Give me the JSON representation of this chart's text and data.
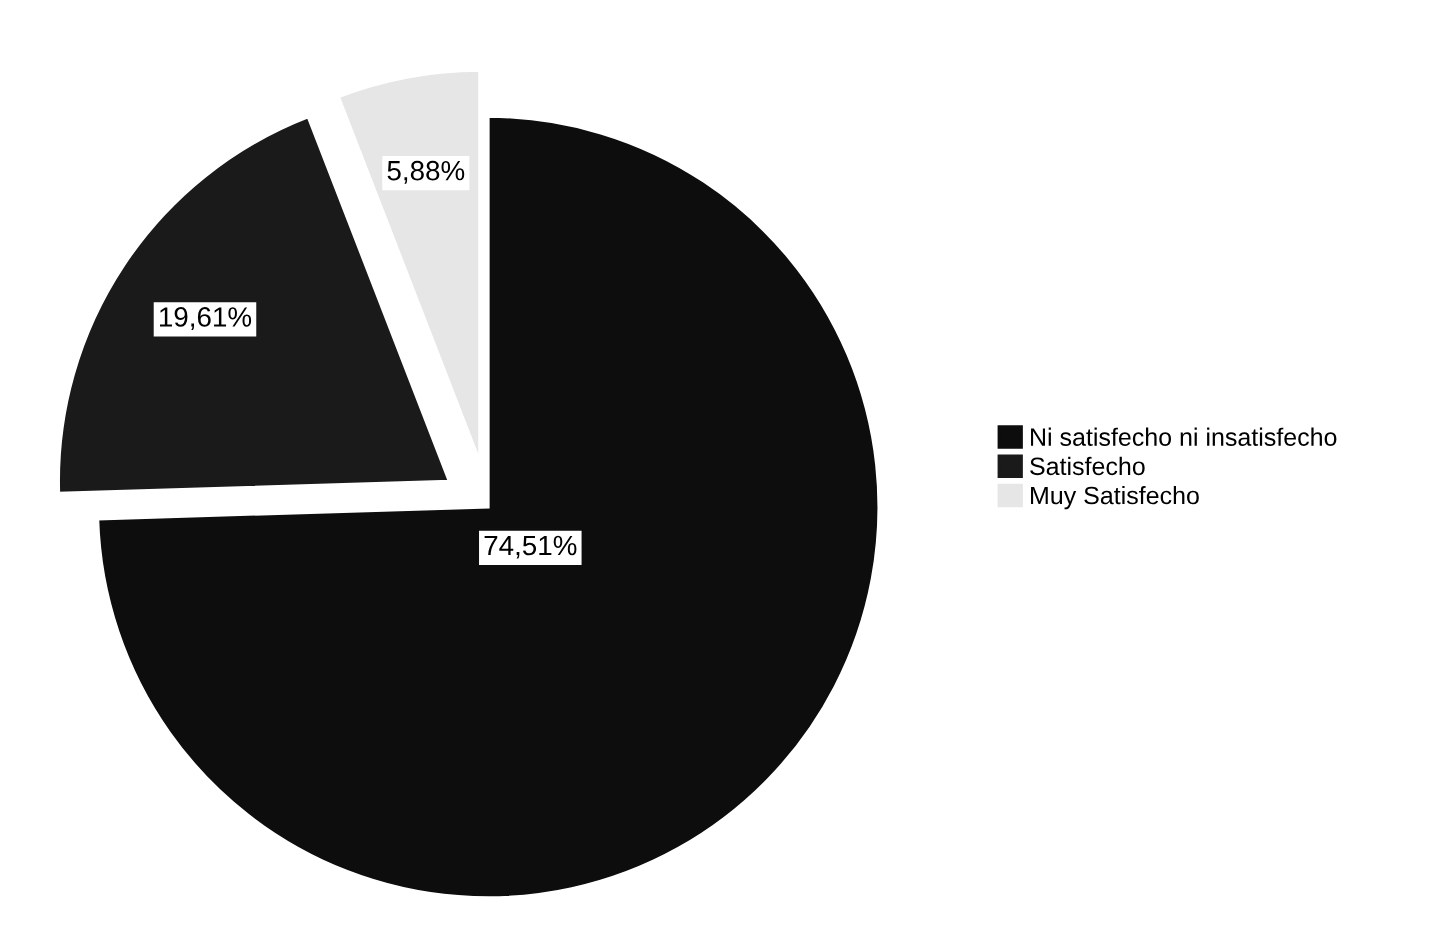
{
  "chart_data": {
    "type": "pie",
    "categories": [
      "Ni satisfecho ni insatisfecho",
      "Satisfecho",
      "Muy Satisfecho"
    ],
    "values": [
      74.51,
      19.61,
      5.88
    ],
    "colors": [
      "#0d0d0d",
      "#1a1a1a",
      "#e6e6e6"
    ],
    "value_labels": [
      "74,51%",
      "19,61%",
      "5,88%"
    ],
    "legend": "right"
  }
}
